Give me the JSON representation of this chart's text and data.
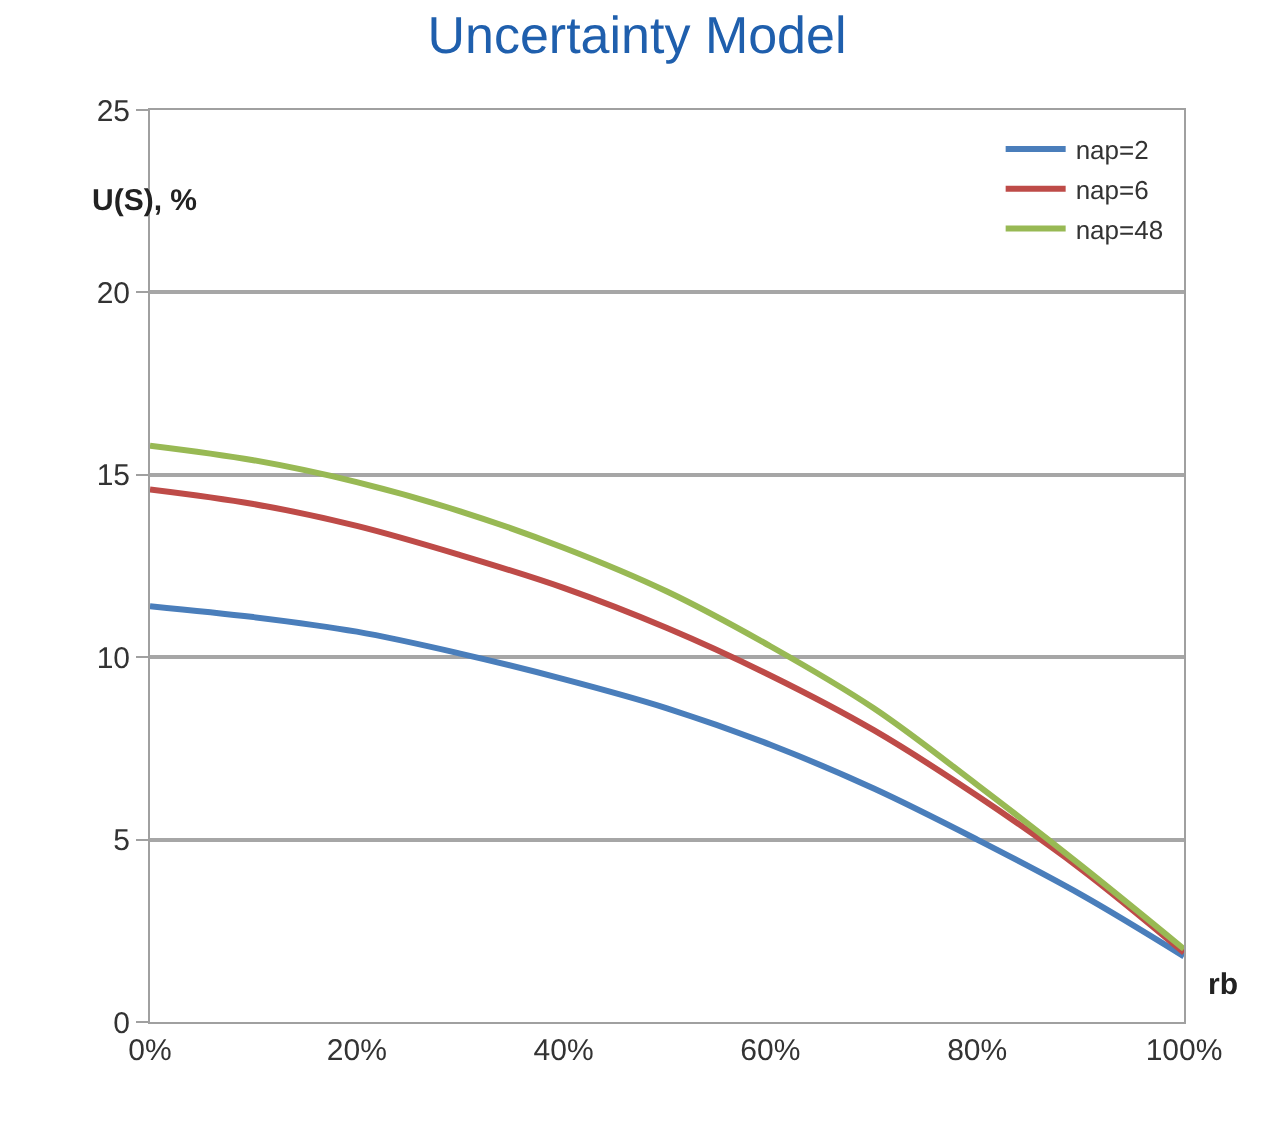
{
  "chart_data": {
    "type": "line",
    "title": "Uncertainty Model",
    "xlabel": "rb",
    "ylabel": "U(S), %",
    "x": [
      0,
      10,
      20,
      30,
      40,
      50,
      60,
      70,
      80,
      90,
      100
    ],
    "xlim": [
      0,
      100
    ],
    "xticks": [
      {
        "value": 0,
        "label": "0%"
      },
      {
        "value": 20,
        "label": "20%"
      },
      {
        "value": 40,
        "label": "40%"
      },
      {
        "value": 60,
        "label": "60%"
      },
      {
        "value": 80,
        "label": "80%"
      },
      {
        "value": 100,
        "label": "100%"
      }
    ],
    "ylim": [
      0,
      25
    ],
    "yticks": [
      0,
      5,
      10,
      15,
      20,
      25
    ],
    "grid": "y",
    "legend": "top right",
    "marker": "none",
    "line_style": "solid",
    "series": [
      {
        "name": "nap=2",
        "color": "#4a7ebb",
        "values": [
          11.4,
          11.1,
          10.7,
          10.1,
          9.4,
          8.6,
          7.6,
          6.4,
          5.0,
          3.5,
          1.8
        ]
      },
      {
        "name": "nap=6",
        "color": "#be4b48",
        "values": [
          14.6,
          14.2,
          13.6,
          12.8,
          11.9,
          10.8,
          9.5,
          8.0,
          6.2,
          4.2,
          1.9
        ]
      },
      {
        "name": "nap=48",
        "color": "#98b954",
        "values": [
          15.8,
          15.4,
          14.8,
          14.0,
          13.0,
          11.8,
          10.3,
          8.6,
          6.5,
          4.3,
          2.0
        ]
      }
    ]
  }
}
